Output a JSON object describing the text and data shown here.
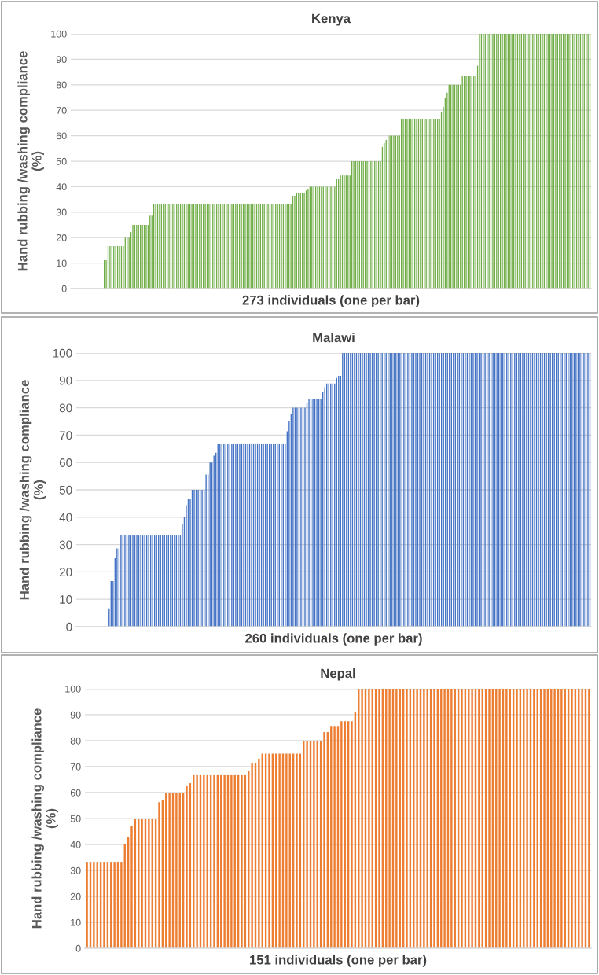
{
  "chart_data": [
    {
      "type": "bar",
      "title": "Kenya",
      "xlabel": "273 individuals (one per bar)",
      "ylabel": "Hand rubbing /washing compliance\n(%)",
      "color": "#70ad47",
      "ylim": [
        0,
        100
      ],
      "yticks": [
        0,
        10,
        20,
        30,
        40,
        50,
        60,
        70,
        80,
        90,
        100
      ],
      "grid": "y",
      "values": [
        0,
        0,
        0,
        0,
        0,
        0,
        0,
        0,
        0,
        0,
        0,
        0,
        0,
        0,
        0,
        0,
        0,
        11.1,
        11.1,
        16.7,
        16.7,
        16.7,
        16.7,
        16.7,
        16.7,
        16.7,
        16.7,
        16.7,
        20,
        20,
        20,
        22.2,
        25,
        25,
        25,
        25,
        25,
        25,
        25,
        25,
        25,
        28.6,
        28.6,
        33.3,
        33.3,
        33.3,
        33.3,
        33.3,
        33.3,
        33.3,
        33.3,
        33.3,
        33.3,
        33.3,
        33.3,
        33.3,
        33.3,
        33.3,
        33.3,
        33.3,
        33.3,
        33.3,
        33.3,
        33.3,
        33.3,
        33.3,
        33.3,
        33.3,
        33.3,
        33.3,
        33.3,
        33.3,
        33.3,
        33.3,
        33.3,
        33.3,
        33.3,
        33.3,
        33.3,
        33.3,
        33.3,
        33.3,
        33.3,
        33.3,
        33.3,
        33.3,
        33.3,
        33.3,
        33.3,
        33.3,
        33.3,
        33.3,
        33.3,
        33.3,
        33.3,
        33.3,
        33.3,
        33.3,
        33.3,
        33.3,
        33.3,
        33.3,
        33.3,
        33.3,
        33.3,
        33.3,
        33.3,
        33.3,
        33.3,
        33.3,
        33.3,
        33.3,
        33.3,
        33.3,
        33.3,
        33.3,
        36.4,
        36.4,
        37.5,
        37.5,
        37.5,
        37.5,
        37.5,
        38.5,
        39.1,
        40,
        40,
        40,
        40,
        40,
        40,
        40,
        40,
        40,
        40,
        40,
        40,
        40,
        40,
        42.9,
        42.9,
        44.4,
        44.4,
        44.4,
        44.4,
        44.4,
        44.4,
        50,
        50,
        50,
        50,
        50,
        50,
        50,
        50,
        50,
        50,
        50,
        50,
        50,
        50,
        50,
        50,
        55.6,
        57.1,
        58.3,
        60,
        60,
        60,
        60,
        60,
        60,
        60,
        66.7,
        66.7,
        66.7,
        66.7,
        66.7,
        66.7,
        66.7,
        66.7,
        66.7,
        66.7,
        66.7,
        66.7,
        66.7,
        66.7,
        66.7,
        66.7,
        66.7,
        66.7,
        66.7,
        66.7,
        66.7,
        69.2,
        71.4,
        75,
        76.9,
        80,
        80,
        80,
        80,
        80,
        80,
        80,
        83.3,
        83.3,
        83.3,
        83.3,
        83.3,
        83.3,
        83.3,
        83.3,
        87.5,
        100,
        100,
        100,
        100,
        100,
        100,
        100,
        100,
        100,
        100,
        100,
        100,
        100,
        100,
        100,
        100,
        100,
        100,
        100,
        100,
        100,
        100,
        100,
        100,
        100,
        100,
        100,
        100,
        100,
        100,
        100,
        100,
        100,
        100,
        100,
        100,
        100,
        100,
        100,
        100,
        100,
        100,
        100,
        100,
        100,
        100,
        100,
        100,
        100,
        100,
        100,
        100,
        100,
        100,
        100,
        100,
        100,
        100,
        100
      ]
    },
    {
      "type": "bar",
      "title": "Malawi",
      "xlabel": "260 individuals (one per bar)",
      "ylabel": "Hand rubbing /washing compliance\n(%)",
      "color": "#4472c4",
      "ylim": [
        0,
        100
      ],
      "yticks": [
        0,
        10,
        20,
        30,
        40,
        50,
        60,
        70,
        80,
        90,
        100
      ],
      "grid": "y",
      "values": [
        0,
        0,
        0,
        0,
        0,
        0,
        0,
        0,
        0,
        0,
        0,
        0,
        0,
        0,
        0,
        0,
        6.7,
        16.7,
        16.7,
        25,
        28.6,
        28.6,
        33.3,
        33.3,
        33.3,
        33.3,
        33.3,
        33.3,
        33.3,
        33.3,
        33.3,
        33.3,
        33.3,
        33.3,
        33.3,
        33.3,
        33.3,
        33.3,
        33.3,
        33.3,
        33.3,
        33.3,
        33.3,
        33.3,
        33.3,
        33.3,
        33.3,
        33.3,
        33.3,
        33.3,
        33.3,
        33.3,
        33.3,
        37.5,
        40,
        44.4,
        46.7,
        46.7,
        50,
        50,
        50,
        50,
        50,
        50,
        50,
        55.6,
        55.6,
        60,
        60,
        62.5,
        63.6,
        66.7,
        66.7,
        66.7,
        66.7,
        66.7,
        66.7,
        66.7,
        66.7,
        66.7,
        66.7,
        66.7,
        66.7,
        66.7,
        66.7,
        66.7,
        66.7,
        66.7,
        66.7,
        66.7,
        66.7,
        66.7,
        66.7,
        66.7,
        66.7,
        66.7,
        66.7,
        66.7,
        66.7,
        66.7,
        66.7,
        66.7,
        66.7,
        66.7,
        66.7,
        66.7,
        71.4,
        75,
        77.8,
        80,
        80,
        80,
        80,
        80,
        80,
        80,
        81.8,
        83.3,
        83.3,
        83.3,
        83.3,
        83.3,
        83.3,
        83.3,
        85.7,
        87.5,
        88.9,
        88.9,
        88.9,
        88.9,
        88.9,
        90.9,
        91.7,
        91.7,
        100,
        100,
        100,
        100,
        100,
        100,
        100,
        100,
        100,
        100,
        100,
        100,
        100,
        100,
        100,
        100,
        100,
        100,
        100,
        100,
        100,
        100,
        100,
        100,
        100,
        100,
        100,
        100,
        100,
        100,
        100,
        100,
        100,
        100,
        100,
        100,
        100,
        100,
        100,
        100,
        100,
        100,
        100,
        100,
        100,
        100,
        100,
        100,
        100,
        100,
        100,
        100,
        100,
        100,
        100,
        100,
        100,
        100,
        100,
        100,
        100,
        100,
        100,
        100,
        100,
        100,
        100,
        100,
        100,
        100,
        100,
        100,
        100,
        100,
        100,
        100,
        100,
        100,
        100,
        100,
        100,
        100,
        100,
        100,
        100,
        100,
        100,
        100,
        100,
        100,
        100,
        100,
        100,
        100,
        100,
        100,
        100,
        100,
        100,
        100,
        100,
        100,
        100,
        100,
        100,
        100,
        100,
        100,
        100,
        100,
        100,
        100,
        100,
        100,
        100,
        100,
        100,
        100,
        100,
        100,
        100,
        100,
        100,
        100,
        100,
        100
      ]
    },
    {
      "type": "bar",
      "title": "Nepal",
      "xlabel": "151 individuals (one per bar)",
      "ylabel": "Hand rubbing /washing compliance\n(%)",
      "color": "#ed7d31",
      "ylim": [
        0,
        100
      ],
      "yticks": [
        0,
        10,
        20,
        30,
        40,
        50,
        60,
        70,
        80,
        90,
        100
      ],
      "grid": "y",
      "values": [
        33.3,
        33.3,
        33.3,
        33.3,
        33.3,
        33.3,
        33.3,
        33.3,
        33.3,
        33.3,
        33.3,
        40,
        42.9,
        47.1,
        50,
        50,
        50,
        50,
        50,
        50,
        50,
        56.3,
        57.1,
        60,
        60,
        60,
        60,
        60,
        60,
        62.5,
        63.6,
        66.7,
        66.7,
        66.7,
        66.7,
        66.7,
        66.7,
        66.7,
        66.7,
        66.7,
        66.7,
        66.7,
        66.7,
        66.7,
        66.7,
        66.7,
        66.7,
        68.4,
        71.4,
        71.4,
        73,
        75,
        75,
        75,
        75,
        75,
        75,
        75,
        75,
        75,
        75,
        75,
        75,
        80,
        80,
        80,
        80,
        80,
        80,
        83.3,
        83.3,
        85.7,
        85.7,
        85.7,
        87.5,
        87.5,
        87.5,
        87.5,
        90.9,
        100,
        100,
        100,
        100,
        100,
        100,
        100,
        100,
        100,
        100,
        100,
        100,
        100,
        100,
        100,
        100,
        100,
        100,
        100,
        100,
        100,
        100,
        100,
        100,
        100,
        100,
        100,
        100,
        100,
        100,
        100,
        100,
        100,
        100,
        100,
        100,
        100,
        100,
        100,
        100,
        100,
        100,
        100,
        100,
        100,
        100,
        100,
        100,
        100,
        100,
        100,
        100,
        100,
        100,
        100,
        100,
        100,
        100,
        100,
        100,
        100,
        100,
        100,
        100,
        100,
        100,
        100,
        100
      ]
    }
  ]
}
